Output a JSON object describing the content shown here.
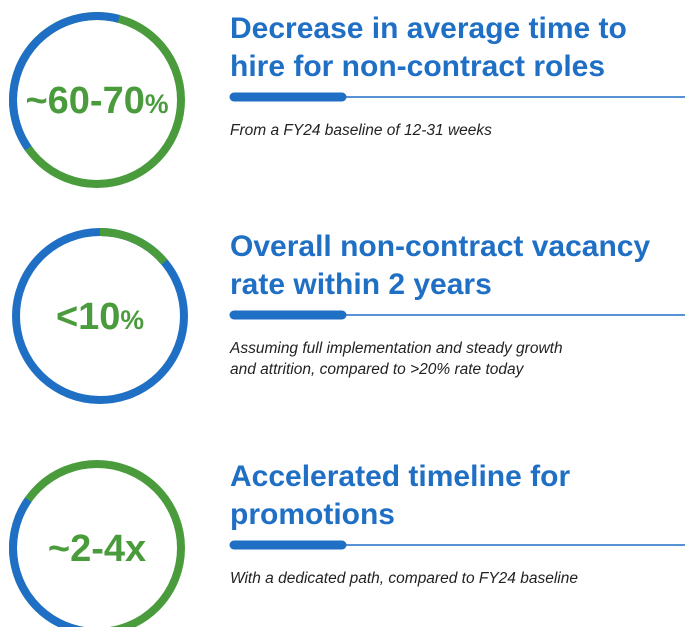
{
  "items": [
    {
      "metric": {
        "value": "~60-70",
        "unit": "%"
      },
      "title": [
        "Decrease in average time to",
        "hire for non-contract roles"
      ],
      "subtitle": [
        "From a FY24 baseline of 12-31 weeks"
      ]
    },
    {
      "metric": {
        "value": "<10",
        "unit": "%"
      },
      "title": [
        "Overall non-contract vacancy",
        "rate within 2 years"
      ],
      "subtitle": [
        "Assuming full implementation and steady growth",
        "and attrition, compared to >20% rate today"
      ]
    },
    {
      "metric": {
        "value": "~2-4x"
      },
      "title": [
        "Accelerated timeline for",
        "promotions"
      ],
      "subtitle": [
        "With a dedicated path, compared to FY24 baseline"
      ]
    }
  ]
}
